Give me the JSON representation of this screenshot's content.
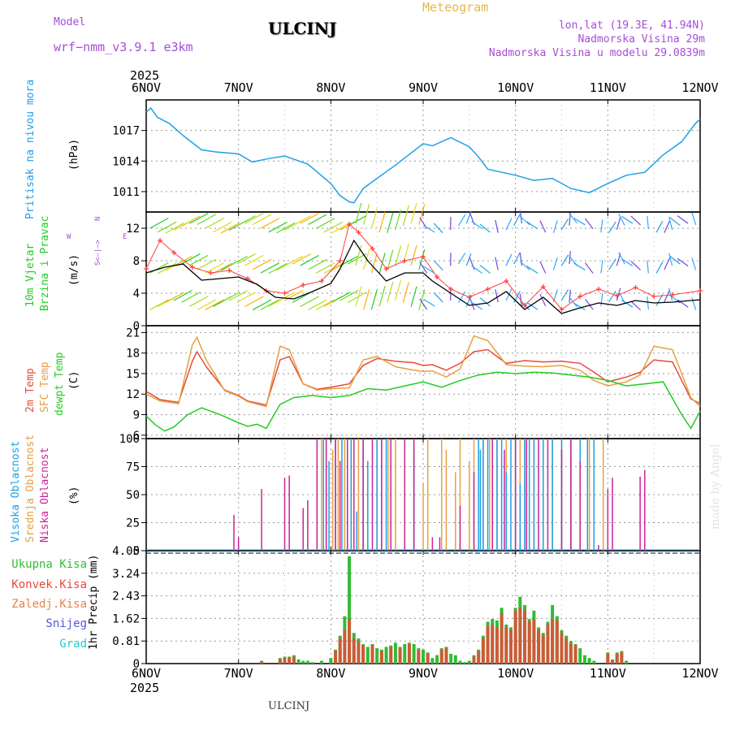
{
  "header": {
    "model_label": "Model",
    "model_name": "wrf−nmm_v3.9.1  e3km",
    "station": "ULCINJ",
    "meteogram": "Meteogram",
    "lonlat": "lon,lat (19.3E, 41.94N)",
    "altitude": "Nadmorska Visina 29m",
    "model_altitude": "Nadmorska Visina u modelu 29.0839m",
    "year_top": "2025",
    "year_bottom": "2025",
    "footer_station": "ULCINJ",
    "watermark": "made by Angel"
  },
  "colors": {
    "pressure": "#1ea0e6",
    "t2m": "#e84a3a",
    "sfc": "#e6a040",
    "dewpt": "#22cc22",
    "wind_line": "#000000",
    "gust": "#ff4040",
    "high_cloud": "#1ea0e6",
    "mid_cloud": "#e6a040",
    "low_cloud": "#cc2299",
    "total_precip": "#33bb33",
    "conv_precip": "#e84a3a",
    "snow": "#5555dd",
    "grad": "#22cccc"
  },
  "chart_data": [
    {
      "type": "line",
      "panel": "pressure",
      "title": "",
      "ylabel_rot": "Pritisak na nivou mora",
      "ylabel": "(hPa)",
      "x_ticks": [
        "6NOV",
        "7NOV",
        "8NOV",
        "9NOV",
        "10NOV",
        "11NOV",
        "12NOV"
      ],
      "ylim": [
        1009,
        1020
      ],
      "y_ticks": [
        1011,
        1014,
        1017
      ],
      "series": [
        {
          "name": "Pritisak na nivou mora",
          "x": [
            0,
            0.05,
            0.12,
            0.25,
            0.4,
            0.6,
            0.75,
            1.0,
            1.15,
            1.3,
            1.5,
            1.75,
            2.0,
            2.1,
            2.2,
            2.25,
            2.35,
            2.5,
            2.7,
            2.9,
            3.0,
            3.1,
            3.3,
            3.5,
            3.6,
            3.7,
            3.8,
            4.0,
            4.2,
            4.4,
            4.6,
            4.8,
            5.0,
            5.2,
            5.4,
            5.6,
            5.8,
            5.95,
            6.0
          ],
          "values": [
            1018.8,
            1019.2,
            1018.3,
            1017.7,
            1016.5,
            1015.1,
            1014.9,
            1014.7,
            1013.9,
            1014.2,
            1014.5,
            1013.7,
            1011.8,
            1010.6,
            1010.0,
            1009.9,
            1011.3,
            1012.3,
            1013.6,
            1015.0,
            1015.7,
            1015.5,
            1016.3,
            1015.4,
            1014.4,
            1013.2,
            1013.0,
            1012.6,
            1012.1,
            1012.3,
            1011.3,
            1010.9,
            1011.8,
            1012.6,
            1012.9,
            1014.6,
            1015.9,
            1017.7,
            1018.1
          ]
        }
      ]
    },
    {
      "type": "line",
      "panel": "wind",
      "title": "",
      "ylabel_rot": [
        "10m Vjetar",
        "Brzina i Pravac"
      ],
      "ylabel": "(m/s)",
      "compass": {
        "n": "N",
        "s": "S",
        "e": "E",
        "w": "W",
        "arrows": "<–|–>"
      },
      "ylim": [
        0,
        14
      ],
      "y_ticks": [
        0,
        4,
        8,
        12
      ],
      "series": [
        {
          "name": "speed",
          "x": [
            0,
            0.2,
            0.4,
            0.6,
            0.8,
            1.0,
            1.2,
            1.4,
            1.6,
            1.8,
            2.0,
            2.1,
            2.25,
            2.4,
            2.6,
            2.8,
            3.0,
            3.1,
            3.3,
            3.5,
            3.7,
            3.9,
            4.1,
            4.3,
            4.5,
            4.7,
            4.9,
            5.1,
            5.3,
            5.5,
            5.7,
            6.0
          ],
          "values": [
            6.5,
            7.2,
            7.6,
            5.6,
            5.8,
            6.0,
            5.1,
            3.5,
            3.3,
            4.2,
            5.2,
            7.0,
            10.5,
            8.0,
            5.5,
            6.5,
            6.5,
            5.5,
            4.0,
            2.5,
            2.8,
            4.2,
            2.0,
            3.5,
            1.5,
            2.2,
            2.8,
            2.5,
            3.1,
            2.8,
            2.9,
            3.2
          ]
        },
        {
          "name": "gust",
          "x": [
            0,
            0.15,
            0.3,
            0.5,
            0.7,
            0.9,
            1.1,
            1.3,
            1.5,
            1.7,
            1.9,
            2.1,
            2.2,
            2.3,
            2.45,
            2.6,
            2.8,
            3.0,
            3.15,
            3.3,
            3.5,
            3.7,
            3.9,
            4.1,
            4.3,
            4.5,
            4.7,
            4.9,
            5.1,
            5.3,
            5.5,
            5.7,
            6.0
          ],
          "values": [
            7.0,
            10.5,
            9.0,
            7.2,
            6.5,
            6.8,
            5.8,
            4.3,
            4.0,
            5.0,
            5.5,
            8.0,
            12.5,
            11.5,
            9.5,
            7.0,
            8.0,
            8.5,
            6.0,
            4.5,
            3.5,
            4.5,
            5.5,
            2.5,
            4.8,
            2.0,
            3.6,
            4.5,
            3.7,
            4.7,
            3.6,
            3.8,
            4.3
          ]
        }
      ]
    },
    {
      "type": "line",
      "panel": "temperature",
      "title": "",
      "ylabel_rot": [
        "2m Temp",
        "SFC Temp",
        "dewpt Temp"
      ],
      "ylabel": "(C)",
      "ylim": [
        5.5,
        22
      ],
      "y_ticks": [
        6,
        9,
        12,
        15,
        18,
        21
      ],
      "series": [
        {
          "name": "2m Temp",
          "x": [
            0,
            0.15,
            0.35,
            0.5,
            0.55,
            0.65,
            0.85,
            1.0,
            1.1,
            1.3,
            1.45,
            1.55,
            1.7,
            1.85,
            2.0,
            2.2,
            2.35,
            2.5,
            2.7,
            2.9,
            3.0,
            3.1,
            3.25,
            3.4,
            3.55,
            3.7,
            3.9,
            4.1,
            4.3,
            4.5,
            4.7,
            4.85,
            5.0,
            5.2,
            5.35,
            5.5,
            5.7,
            5.9,
            6.0
          ],
          "values": [
            12.4,
            11.2,
            10.8,
            16.8,
            18.2,
            16.0,
            12.6,
            11.8,
            11.0,
            10.4,
            17.0,
            17.5,
            13.5,
            12.7,
            13.0,
            13.5,
            16.2,
            17.2,
            16.8,
            16.6,
            16.2,
            16.3,
            15.5,
            16.5,
            18.2,
            18.5,
            16.5,
            16.9,
            16.7,
            16.8,
            16.5,
            15.2,
            13.8,
            14.5,
            15.2,
            17.0,
            16.7,
            11.3,
            10.6
          ]
        },
        {
          "name": "SFC Temp",
          "x": [
            0,
            0.15,
            0.35,
            0.5,
            0.55,
            0.65,
            0.85,
            1.0,
            1.1,
            1.3,
            1.45,
            1.55,
            1.7,
            1.85,
            2.0,
            2.2,
            2.35,
            2.5,
            2.7,
            2.9,
            3.0,
            3.1,
            3.25,
            3.4,
            3.55,
            3.7,
            3.9,
            4.1,
            4.3,
            4.5,
            4.7,
            4.85,
            5.0,
            5.2,
            5.35,
            5.5,
            5.7,
            5.9,
            6.0
          ],
          "values": [
            12.0,
            11.0,
            10.6,
            19.2,
            20.3,
            17.0,
            12.5,
            11.7,
            10.9,
            10.2,
            19.0,
            18.5,
            13.5,
            12.6,
            12.8,
            12.9,
            17.0,
            17.5,
            16.0,
            15.5,
            15.3,
            15.4,
            14.5,
            15.7,
            20.5,
            19.8,
            16.3,
            16.1,
            16.0,
            16.2,
            15.5,
            14.0,
            13.2,
            13.8,
            14.8,
            19.0,
            18.5,
            11.5,
            10.2
          ]
        },
        {
          "name": "dewpt Temp",
          "x": [
            0,
            0.1,
            0.2,
            0.3,
            0.45,
            0.6,
            0.8,
            1.0,
            1.1,
            1.2,
            1.3,
            1.45,
            1.6,
            1.8,
            2.0,
            2.2,
            2.4,
            2.6,
            2.8,
            3.0,
            3.2,
            3.4,
            3.6,
            3.8,
            4.0,
            4.2,
            4.4,
            4.6,
            4.8,
            5.0,
            5.2,
            5.4,
            5.6,
            5.8,
            5.9,
            6.0
          ],
          "values": [
            8.8,
            7.5,
            6.6,
            7.2,
            9.0,
            10.0,
            9.0,
            7.8,
            7.3,
            7.6,
            7.0,
            10.5,
            11.5,
            11.8,
            11.5,
            11.8,
            12.8,
            12.6,
            13.2,
            13.8,
            13.0,
            14.0,
            14.8,
            15.2,
            15.0,
            15.2,
            15.1,
            14.8,
            14.5,
            14.0,
            13.2,
            13.5,
            13.8,
            9.0,
            7.0,
            9.5
          ]
        }
      ]
    },
    {
      "type": "bar",
      "panel": "clouds",
      "title": "",
      "ylabel_rot": [
        "Visoka Oblacnost",
        "Srednja Oblacnost",
        "Niska Oblacnost"
      ],
      "ylabel": "(%)",
      "ylim": [
        0,
        100
      ],
      "y_ticks": [
        0,
        25,
        50,
        75,
        100
      ],
      "series": [
        {
          "name": "Visoka Oblacnost",
          "x": [
            1.92,
            1.98,
            2.05,
            2.12,
            2.18,
            2.22,
            2.28,
            2.35,
            2.4,
            2.5,
            2.6,
            2.9,
            3.6,
            3.62,
            3.65,
            3.7,
            3.75,
            3.8,
            3.85,
            3.9,
            3.95,
            4.0,
            4.05,
            4.1,
            4.15,
            4.2,
            4.3,
            4.4,
            4.5,
            4.6,
            4.7,
            4.78,
            4.85
          ],
          "values": [
            100,
            80,
            100,
            100,
            60,
            100,
            35,
            100,
            80,
            100,
            100,
            90,
            100,
            90,
            100,
            100,
            80,
            100,
            100,
            70,
            100,
            100,
            60,
            100,
            100,
            100,
            100,
            100,
            100,
            100,
            100,
            100,
            100
          ]
        },
        {
          "name": "Srednja Oblacnost",
          "x": [
            1.85,
            1.9,
            1.95,
            2.02,
            2.08,
            2.15,
            2.22,
            2.3,
            2.4,
            2.5,
            2.55,
            2.62,
            2.7,
            2.8,
            2.9,
            3.0,
            3.05,
            3.2,
            3.25,
            3.35,
            3.4,
            3.5,
            3.55,
            3.65,
            3.72,
            3.8,
            3.9,
            4.0,
            4.05,
            4.1,
            4.2,
            4.3,
            4.4,
            4.5,
            4.6,
            4.7,
            4.8,
            4.95
          ],
          "values": [
            80,
            100,
            100,
            90,
            100,
            100,
            100,
            100,
            80,
            100,
            100,
            100,
            100,
            100,
            100,
            60,
            100,
            100,
            90,
            70,
            100,
            80,
            100,
            100,
            100,
            100,
            100,
            100,
            100,
            100,
            100,
            100,
            100,
            100,
            85,
            100,
            100,
            100
          ]
        },
        {
          "name": "Niska Oblacnost",
          "x": [
            0.95,
            1.0,
            1.25,
            1.5,
            1.55,
            1.7,
            1.75,
            1.85,
            1.95,
            2.05,
            2.1,
            2.18,
            2.25,
            2.35,
            2.45,
            2.55,
            2.65,
            2.8,
            2.9,
            3.1,
            3.18,
            3.4,
            3.55,
            3.75,
            3.88,
            4.0,
            4.12,
            4.25,
            4.35,
            4.5,
            4.6,
            4.7,
            4.9,
            5.0,
            5.05,
            5.35,
            5.4
          ],
          "values": [
            32,
            12,
            55,
            65,
            67,
            38,
            45,
            100,
            100,
            100,
            80,
            100,
            100,
            100,
            100,
            100,
            100,
            100,
            100,
            12,
            12,
            40,
            70,
            100,
            90,
            100,
            100,
            100,
            100,
            90,
            100,
            80,
            5,
            55,
            65,
            66,
            72
          ]
        }
      ]
    },
    {
      "type": "bar",
      "panel": "precipitation",
      "title": "",
      "ylabel": "1hr Precip (mm)",
      "legend": [
        "Ukupna Kisa",
        "Konvek.Kisa",
        "Zaledj.Kisa",
        "Snijeg",
        "Grad"
      ],
      "ylim": [
        0,
        4.05
      ],
      "y_ticks": [
        0,
        0.81,
        1.62,
        2.43,
        3.24,
        4.05
      ],
      "x_ticks": [
        "6NOV",
        "7NOV",
        "8NOV",
        "9NOV",
        "10NOV",
        "11NOV",
        "12NOV"
      ],
      "series": [
        {
          "name": "Ukupna Kisa",
          "x": [
            1.25,
            1.45,
            1.5,
            1.55,
            1.6,
            1.65,
            1.7,
            1.75,
            1.8,
            1.9,
            2.0,
            2.05,
            2.1,
            2.15,
            2.2,
            2.25,
            2.3,
            2.35,
            2.4,
            2.45,
            2.5,
            2.55,
            2.6,
            2.65,
            2.7,
            2.75,
            2.8,
            2.85,
            2.9,
            2.95,
            3.0,
            3.05,
            3.1,
            3.15,
            3.2,
            3.25,
            3.3,
            3.35,
            3.4,
            3.45,
            3.5,
            3.55,
            3.6,
            3.65,
            3.7,
            3.75,
            3.8,
            3.85,
            3.9,
            3.95,
            4.0,
            4.05,
            4.1,
            4.15,
            4.2,
            4.25,
            4.3,
            4.35,
            4.4,
            4.45,
            4.5,
            4.55,
            4.6,
            4.65,
            4.7,
            4.75,
            4.8,
            4.85,
            5.0,
            5.05,
            5.1,
            5.15,
            5.2
          ],
          "values": [
            0.1,
            0.2,
            0.25,
            0.25,
            0.3,
            0.15,
            0.1,
            0.1,
            0.05,
            0.1,
            0.2,
            0.5,
            1.0,
            1.7,
            3.85,
            1.1,
            0.9,
            0.7,
            0.6,
            0.7,
            0.55,
            0.5,
            0.6,
            0.65,
            0.75,
            0.6,
            0.7,
            0.75,
            0.7,
            0.55,
            0.5,
            0.4,
            0.2,
            0.3,
            0.55,
            0.6,
            0.35,
            0.3,
            0.1,
            0.05,
            0.1,
            0.3,
            0.5,
            1.0,
            1.5,
            1.6,
            1.55,
            2.0,
            1.4,
            1.3,
            2.0,
            2.4,
            2.1,
            1.6,
            1.9,
            1.3,
            1.1,
            1.5,
            2.1,
            1.7,
            1.2,
            1.0,
            0.8,
            0.7,
            0.55,
            0.3,
            0.2,
            0.1,
            0.4,
            0.15,
            0.4,
            0.45,
            0.1
          ]
        },
        {
          "name": "Konvek.Kisa",
          "x": [
            1.25,
            1.45,
            1.5,
            1.55,
            1.6,
            2.05,
            2.1,
            2.15,
            2.2,
            2.25,
            2.3,
            2.35,
            2.45,
            2.55,
            2.65,
            2.75,
            2.85,
            2.95,
            3.05,
            3.2,
            3.25,
            3.55,
            3.6,
            3.65,
            3.7,
            3.75,
            3.8,
            3.85,
            3.9,
            3.95,
            4.0,
            4.05,
            4.1,
            4.15,
            4.2,
            4.25,
            4.3,
            4.35,
            4.4,
            4.45,
            4.5,
            4.55,
            4.6,
            4.65,
            5.0,
            5.05,
            5.1,
            5.15
          ],
          "values": [
            0.08,
            0.15,
            0.2,
            0.2,
            0.25,
            0.45,
            0.9,
            1.2,
            1.6,
            0.9,
            0.8,
            0.65,
            0.65,
            0.45,
            0.6,
            0.55,
            0.7,
            0.5,
            0.35,
            0.5,
            0.55,
            0.25,
            0.45,
            0.9,
            1.35,
            1.4,
            1.3,
            1.8,
            1.3,
            1.2,
            1.9,
            2.0,
            1.9,
            1.5,
            1.6,
            1.2,
            1.0,
            1.4,
            1.6,
            1.55,
            1.1,
            0.9,
            0.7,
            0.65,
            0.35,
            0.12,
            0.35,
            0.4
          ]
        }
      ]
    }
  ]
}
